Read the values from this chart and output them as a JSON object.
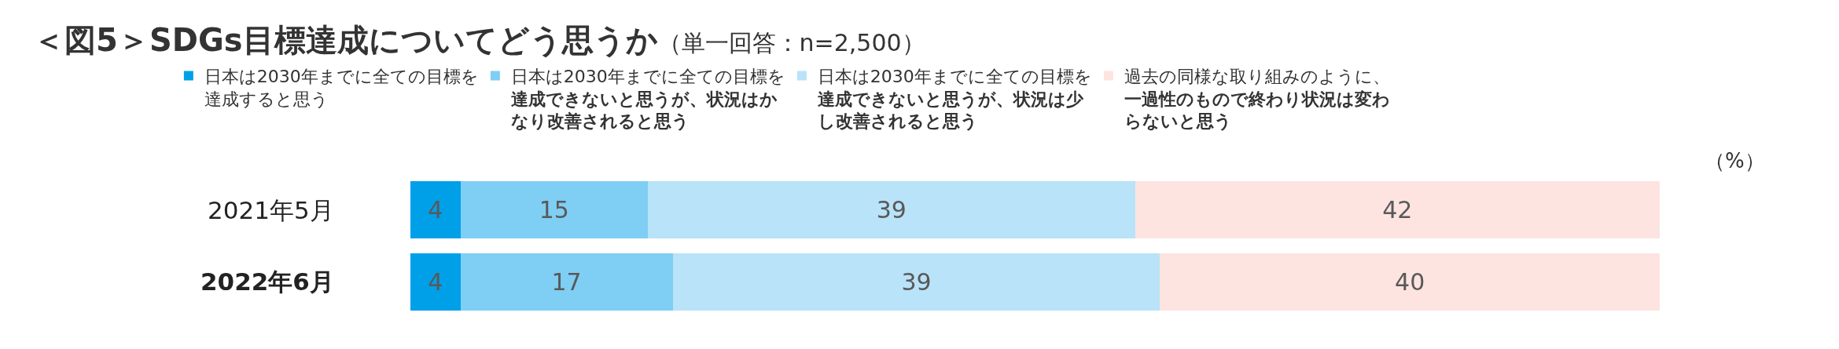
{
  "chart_data": {
    "type": "bar",
    "orientation": "horizontal",
    "stacked": true,
    "xlim": [
      0,
      100
    ],
    "tick_labels": false,
    "data_labels": true,
    "legend": "top",
    "title": "＜図5＞SDGs目標達成についてどう思うか",
    "subtitle": "（単一回答：n=2,500）",
    "categories": [
      "2021年5月",
      "2022年6月"
    ],
    "series": [
      {
        "name": "日本は2030年までに全ての目標を達成すると思う",
        "color": "#00a0e9",
        "values": [
          4,
          4
        ]
      },
      {
        "name": "日本は2030年までに全ての目標を達成できないと思うが、状況はかなり改善されると思う",
        "color": "#7fcef4",
        "values": [
          15,
          17
        ]
      },
      {
        "name": "日本は2030年までに全ての目標を達成できないと思うが、状況は少し改善されると思う",
        "color": "#b9e3f8",
        "values": [
          39,
          39
        ]
      },
      {
        "name": "過去の同様な取り組みのように、一過性のもので終わり状況は変わらないと思う",
        "color": "#fde4e0",
        "values": [
          42,
          40
        ]
      }
    ],
    "annotations": [
      "（%）"
    ]
  }
}
